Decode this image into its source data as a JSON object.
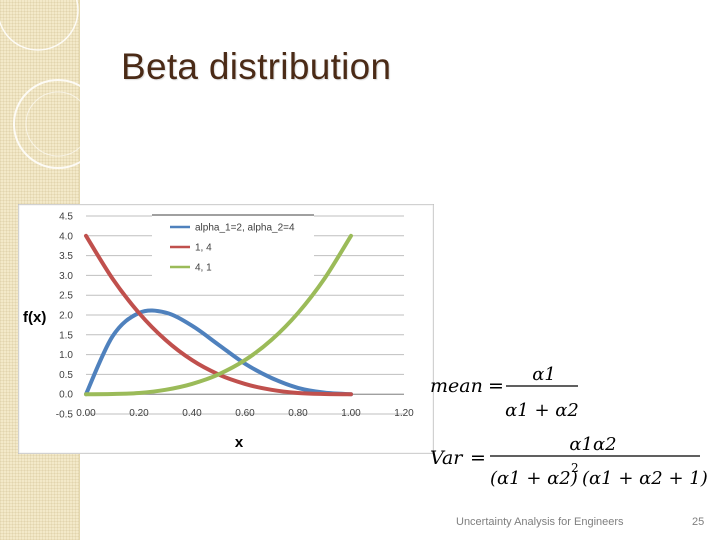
{
  "slide": {
    "title": "Beta distribution",
    "footer": "Uncertainty Analysis for Engineers",
    "page_number": "25"
  },
  "colors": {
    "title": "#4a2a16",
    "sidebar": "#f3e9c9",
    "series": [
      "#4f81bd",
      "#c0504d",
      "#9bbb59"
    ]
  },
  "formulas": {
    "mean": {
      "lhs": "mean",
      "eq": "=",
      "num": "α1",
      "den": "α1 + α2"
    },
    "var": {
      "lhs": "Var",
      "eq": "=",
      "num": "α1α2",
      "den1": "(α1 + α2)",
      "exp": "2",
      "den2": "(α1 + α2 + 1)"
    }
  },
  "chart_data": {
    "type": "line",
    "xlabel": "x",
    "ylabel": "f(x)",
    "xlim": [
      0,
      1.2
    ],
    "ylim": [
      -0.5,
      4.5
    ],
    "x_ticks": [
      "0.00",
      "0.20",
      "0.40",
      "0.60",
      "0.80",
      "1.00",
      "1.20"
    ],
    "y_ticks": [
      "-0.5",
      "0.0",
      "0.5",
      "1.0",
      "1.5",
      "2.0",
      "2.5",
      "3.0",
      "3.5",
      "4.0",
      "4.5"
    ],
    "grid": true,
    "legend_position": "top-center",
    "x": [
      0,
      0.1,
      0.2,
      0.3,
      0.4,
      0.5,
      0.6,
      0.7,
      0.8,
      0.9,
      1.0
    ],
    "series": [
      {
        "name": "alpha_1=2, alpha_2=4",
        "values": [
          0,
          1.46,
          2.05,
          2.06,
          1.73,
          1.25,
          0.77,
          0.41,
          0.16,
          0.04,
          0
        ]
      },
      {
        "name": "1, 4",
        "values": [
          4.0,
          2.92,
          2.05,
          1.37,
          0.86,
          0.5,
          0.26,
          0.11,
          0.03,
          0.004,
          0
        ]
      },
      {
        "name": "4, 1",
        "values": [
          0,
          0.004,
          0.03,
          0.11,
          0.26,
          0.5,
          0.86,
          1.37,
          2.05,
          2.92,
          4.0
        ]
      }
    ]
  }
}
